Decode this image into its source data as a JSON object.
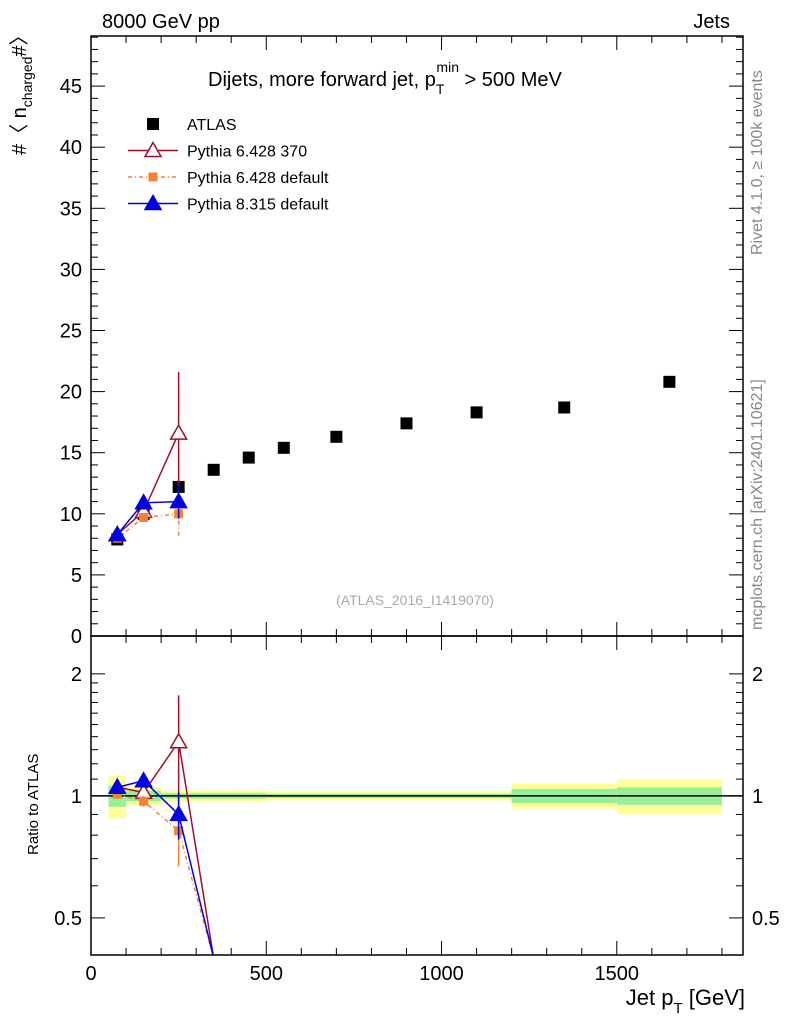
{
  "header": {
    "left": "8000 GeV pp",
    "right": "Jets"
  },
  "side": {
    "top": "Rivet 4.1.0, ≥ 100k events",
    "bottom": "mcplots.cern.ch [arXiv:2401.10621]"
  },
  "chart_data": [
    {
      "type": "scatter",
      "title": "Dijets, more forward jet, p_T^min > 500 MeV",
      "title_main": "Dijets, more forward jet, p",
      "title_sub": "T",
      "title_sup": "min",
      "title_end": " > 500 MeV",
      "ylabel": "#〈 n_charged #〉",
      "watermark": "(ATLAS_2016_I1419070)",
      "xlim": [
        0,
        1860
      ],
      "ylim": [
        0,
        49.1
      ],
      "yticks": [
        0,
        5,
        10,
        15,
        20,
        25,
        30,
        35,
        40,
        45
      ],
      "legend_position": "top-left",
      "series": [
        {
          "name": "ATLAS",
          "color": "#000000",
          "marker": "square",
          "x": [
            75,
            150,
            250,
            350,
            450,
            550,
            700,
            900,
            1100,
            1350,
            1650
          ],
          "y": [
            7.9,
            10.0,
            12.2,
            13.6,
            14.6,
            15.4,
            16.3,
            17.4,
            18.3,
            18.7,
            20.8
          ]
        },
        {
          "name": "Pythia 6.428 370",
          "color": "#a0102a",
          "marker": "open-triangle",
          "x": [
            75,
            150,
            250
          ],
          "y": [
            8.3,
            10.2,
            16.6
          ],
          "err": [
            0.2,
            0.3,
            5.0
          ]
        },
        {
          "name": "Pythia 6.428 default",
          "color": "#f58231",
          "marker": "square-small",
          "dash": "4,3,1,3",
          "x": [
            75,
            150,
            250
          ],
          "y": [
            8.0,
            9.7,
            10.0
          ],
          "err": [
            0.1,
            0.3,
            1.8
          ]
        },
        {
          "name": "Pythia 8.315 default",
          "color": "#0000e0",
          "marker": "triangle",
          "x": [
            75,
            150,
            250
          ],
          "y": [
            8.3,
            10.9,
            11.0
          ],
          "err": [
            0.1,
            0.2,
            1.4
          ]
        }
      ]
    },
    {
      "type": "line",
      "ylabel": "Ratio to ATLAS",
      "xlabel": "Jet p_T [GeV]",
      "xlabel_main": "Jet p",
      "xlabel_sub": "T",
      "xlabel_end": " [GeV]",
      "xlim": [
        0,
        1860
      ],
      "ylim": [
        0.405,
        2.48
      ],
      "yscale": "log",
      "yticks": [
        0.5,
        1,
        2
      ],
      "xticks": [
        0,
        500,
        1000,
        1500
      ],
      "bands": {
        "edges": [
          50,
          100,
          200,
          300,
          400,
          500,
          600,
          800,
          1000,
          1200,
          1500,
          1800
        ],
        "yellow": [
          0.12,
          0.05,
          0.03,
          0.03,
          0.03,
          0.025,
          0.025,
          0.025,
          0.025,
          0.07,
          0.1
        ],
        "green": [
          0.06,
          0.03,
          0.015,
          0.015,
          0.015,
          0.012,
          0.012,
          0.012,
          0.012,
          0.04,
          0.05
        ]
      },
      "series": [
        {
          "name": "Pythia 6.428 370",
          "x": [
            75,
            150,
            250,
            350
          ],
          "y": [
            1.05,
            1.02,
            1.36,
            0
          ],
          "err": [
            0.03,
            0.03,
            0.41,
            0
          ]
        },
        {
          "name": "Pythia 6.428 default",
          "x": [
            75,
            150,
            250,
            350
          ],
          "y": [
            1.01,
            0.97,
            0.82,
            0
          ],
          "err": [
            0.01,
            0.03,
            0.15,
            0
          ]
        },
        {
          "name": "Pythia 8.315 default",
          "x": [
            75,
            150,
            250,
            350
          ],
          "y": [
            1.05,
            1.09,
            0.9,
            0
          ],
          "err": [
            0.01,
            0.02,
            0.12,
            0
          ]
        }
      ]
    }
  ]
}
